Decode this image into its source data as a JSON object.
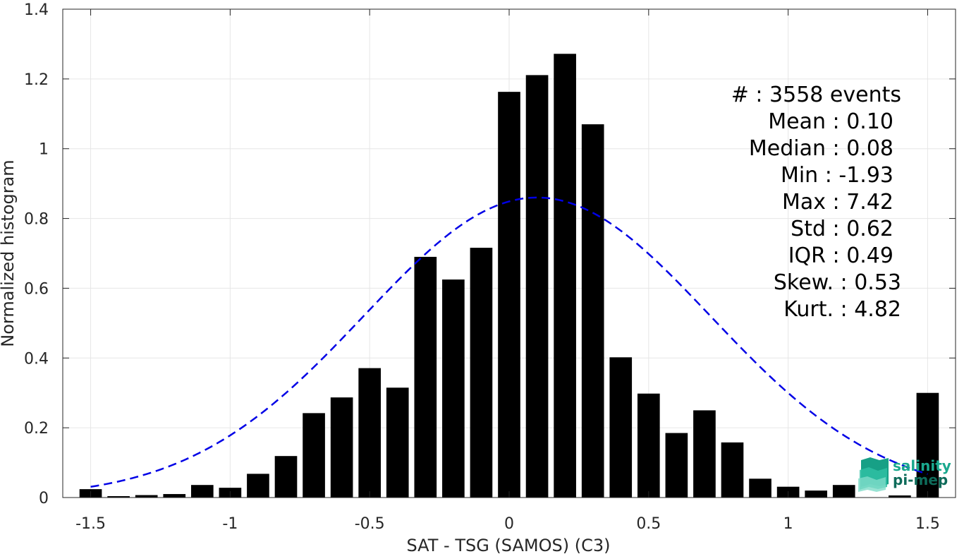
{
  "chart_data": {
    "type": "bar",
    "xlabel": "SAT - TSG (SAMOS) (C3)",
    "ylabel": "Normalized histogram",
    "xlim": [
      -1.6,
      1.6
    ],
    "ylim": [
      0,
      1.4
    ],
    "grid": true,
    "bar_width": 0.08,
    "bar_color": "#000000",
    "x_ticks": [
      -1.5,
      -1,
      -0.5,
      0,
      0.5,
      1,
      1.5
    ],
    "x_tick_labels": [
      "-1.5",
      "-1",
      "-0.5",
      "0",
      "0.5",
      "1",
      "1.5"
    ],
    "y_ticks": [
      0,
      0.2,
      0.4,
      0.6,
      0.8,
      1,
      1.2,
      1.4
    ],
    "y_tick_labels": [
      "0",
      "0.2",
      "0.4",
      "0.6",
      "0.8",
      "1",
      "1.2",
      "1.4"
    ],
    "x": [
      -1.5,
      -1.4,
      -1.3,
      -1.2,
      -1.1,
      -1.0,
      -0.9,
      -0.8,
      -0.7,
      -0.6,
      -0.5,
      -0.4,
      -0.3,
      -0.2,
      -0.1,
      0.0,
      0.1,
      0.2,
      0.3,
      0.4,
      0.5,
      0.6,
      0.7,
      0.8,
      0.9,
      1.0,
      1.1,
      1.2,
      1.3,
      1.4,
      1.5
    ],
    "values": [
      0.024,
      0.004,
      0.007,
      0.01,
      0.036,
      0.028,
      0.068,
      0.119,
      0.242,
      0.287,
      0.371,
      0.315,
      0.69,
      0.625,
      0.716,
      1.163,
      1.211,
      1.272,
      1.07,
      0.402,
      0.298,
      0.185,
      0.25,
      0.158,
      0.054,
      0.031,
      0.02,
      0.036,
      0.0,
      0.006,
      0.3
    ],
    "fit_curve": {
      "type": "normal",
      "mean": 0.1,
      "std": 0.62,
      "peak": 0.86,
      "style": "dashed",
      "color": "#0000e6"
    },
    "stats": [
      {
        "text": "#  : 3558 events"
      },
      {
        "text": "Mean : 0.10"
      },
      {
        "text": "Median : 0.08"
      },
      {
        "text": "Min : -1.93"
      },
      {
        "text": "Max : 7.42"
      },
      {
        "text": "Std : 0.62"
      },
      {
        "text": "IQR : 0.49"
      },
      {
        "text": "Skew. : 0.53"
      },
      {
        "text": "Kurt. : 4.82"
      }
    ]
  },
  "logo": {
    "line1": "salinity",
    "line2": "pi-mep",
    "color": "#1aa88e"
  }
}
